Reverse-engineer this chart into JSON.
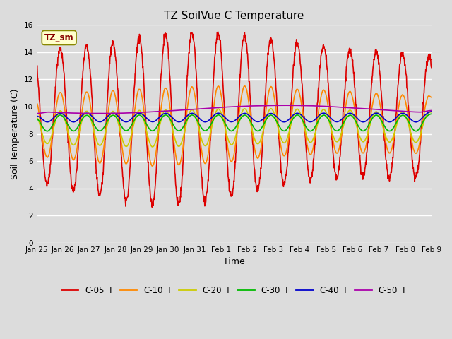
{
  "title": "TZ SoilVue C Temperature",
  "xlabel": "Time",
  "ylabel": "Soil Temperature (C)",
  "ylim": [
    0,
    16
  ],
  "yticks": [
    0,
    2,
    4,
    6,
    8,
    10,
    12,
    14,
    16
  ],
  "background_color": "#dcdcdc",
  "plot_bg_color": "#dcdcdc",
  "annotation_text": "TZ_sm",
  "annotation_color": "#880000",
  "annotation_bg": "#ffffcc",
  "series": {
    "C-05_T": {
      "color": "#dd0000",
      "lw": 1.2
    },
    "C-10_T": {
      "color": "#ff8800",
      "lw": 1.2
    },
    "C-20_T": {
      "color": "#cccc00",
      "lw": 1.2
    },
    "C-30_T": {
      "color": "#00bb00",
      "lw": 1.2
    },
    "C-40_T": {
      "color": "#0000cc",
      "lw": 1.2
    },
    "C-50_T": {
      "color": "#aa00aa",
      "lw": 1.2
    }
  },
  "x_tick_labels": [
    "Jan 25",
    "Jan 26",
    "Jan 27",
    "Jan 28",
    "Jan 29",
    "Jan 30",
    "Jan 31",
    "Feb 1",
    "Feb 2",
    "Feb 3",
    "Feb 4",
    "Feb 5",
    "Feb 6",
    "Feb 7",
    "Feb 8",
    "Feb 9"
  ],
  "num_points": 1440,
  "start_day": 0,
  "end_day": 15
}
